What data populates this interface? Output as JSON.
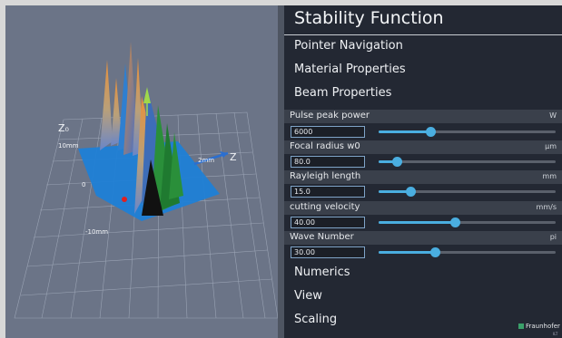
{
  "panel": {
    "title": "Stability Function",
    "sections_top": [
      "Pointer Navigation",
      "Material Properties",
      "Beam Properties"
    ],
    "params": [
      {
        "label": "Pulse peak power",
        "unit": "W",
        "value": "6000",
        "fraction": 0.29
      },
      {
        "label": "Focal radius w0",
        "unit": "µm",
        "value": "80.0",
        "fraction": 0.1
      },
      {
        "label": "Rayleigh length",
        "unit": "mm",
        "value": "15.0",
        "fraction": 0.18
      },
      {
        "label": "cutting velocity",
        "unit": "mm/s",
        "value": "40.00",
        "fraction": 0.43
      },
      {
        "label": "Wave Number",
        "unit": "pi",
        "value": "30.00",
        "fraction": 0.32
      }
    ],
    "sections_bottom": [
      "Numerics",
      "View",
      "Scaling"
    ],
    "brand": "Fraunhofer",
    "brand_sub": "ILT"
  },
  "viewport": {
    "axis_labels": {
      "z0": "Z₀",
      "z": "Z"
    },
    "tick_labels": {
      "z0_top": "10mm",
      "z0_mid": "0",
      "z0_bottom": "-10mm",
      "z_right": "2mm"
    },
    "colors": {
      "background": "#6b7487",
      "surface_base": "#1f7fd6",
      "marker": "#e02020",
      "cone": "#a0d84a"
    }
  }
}
